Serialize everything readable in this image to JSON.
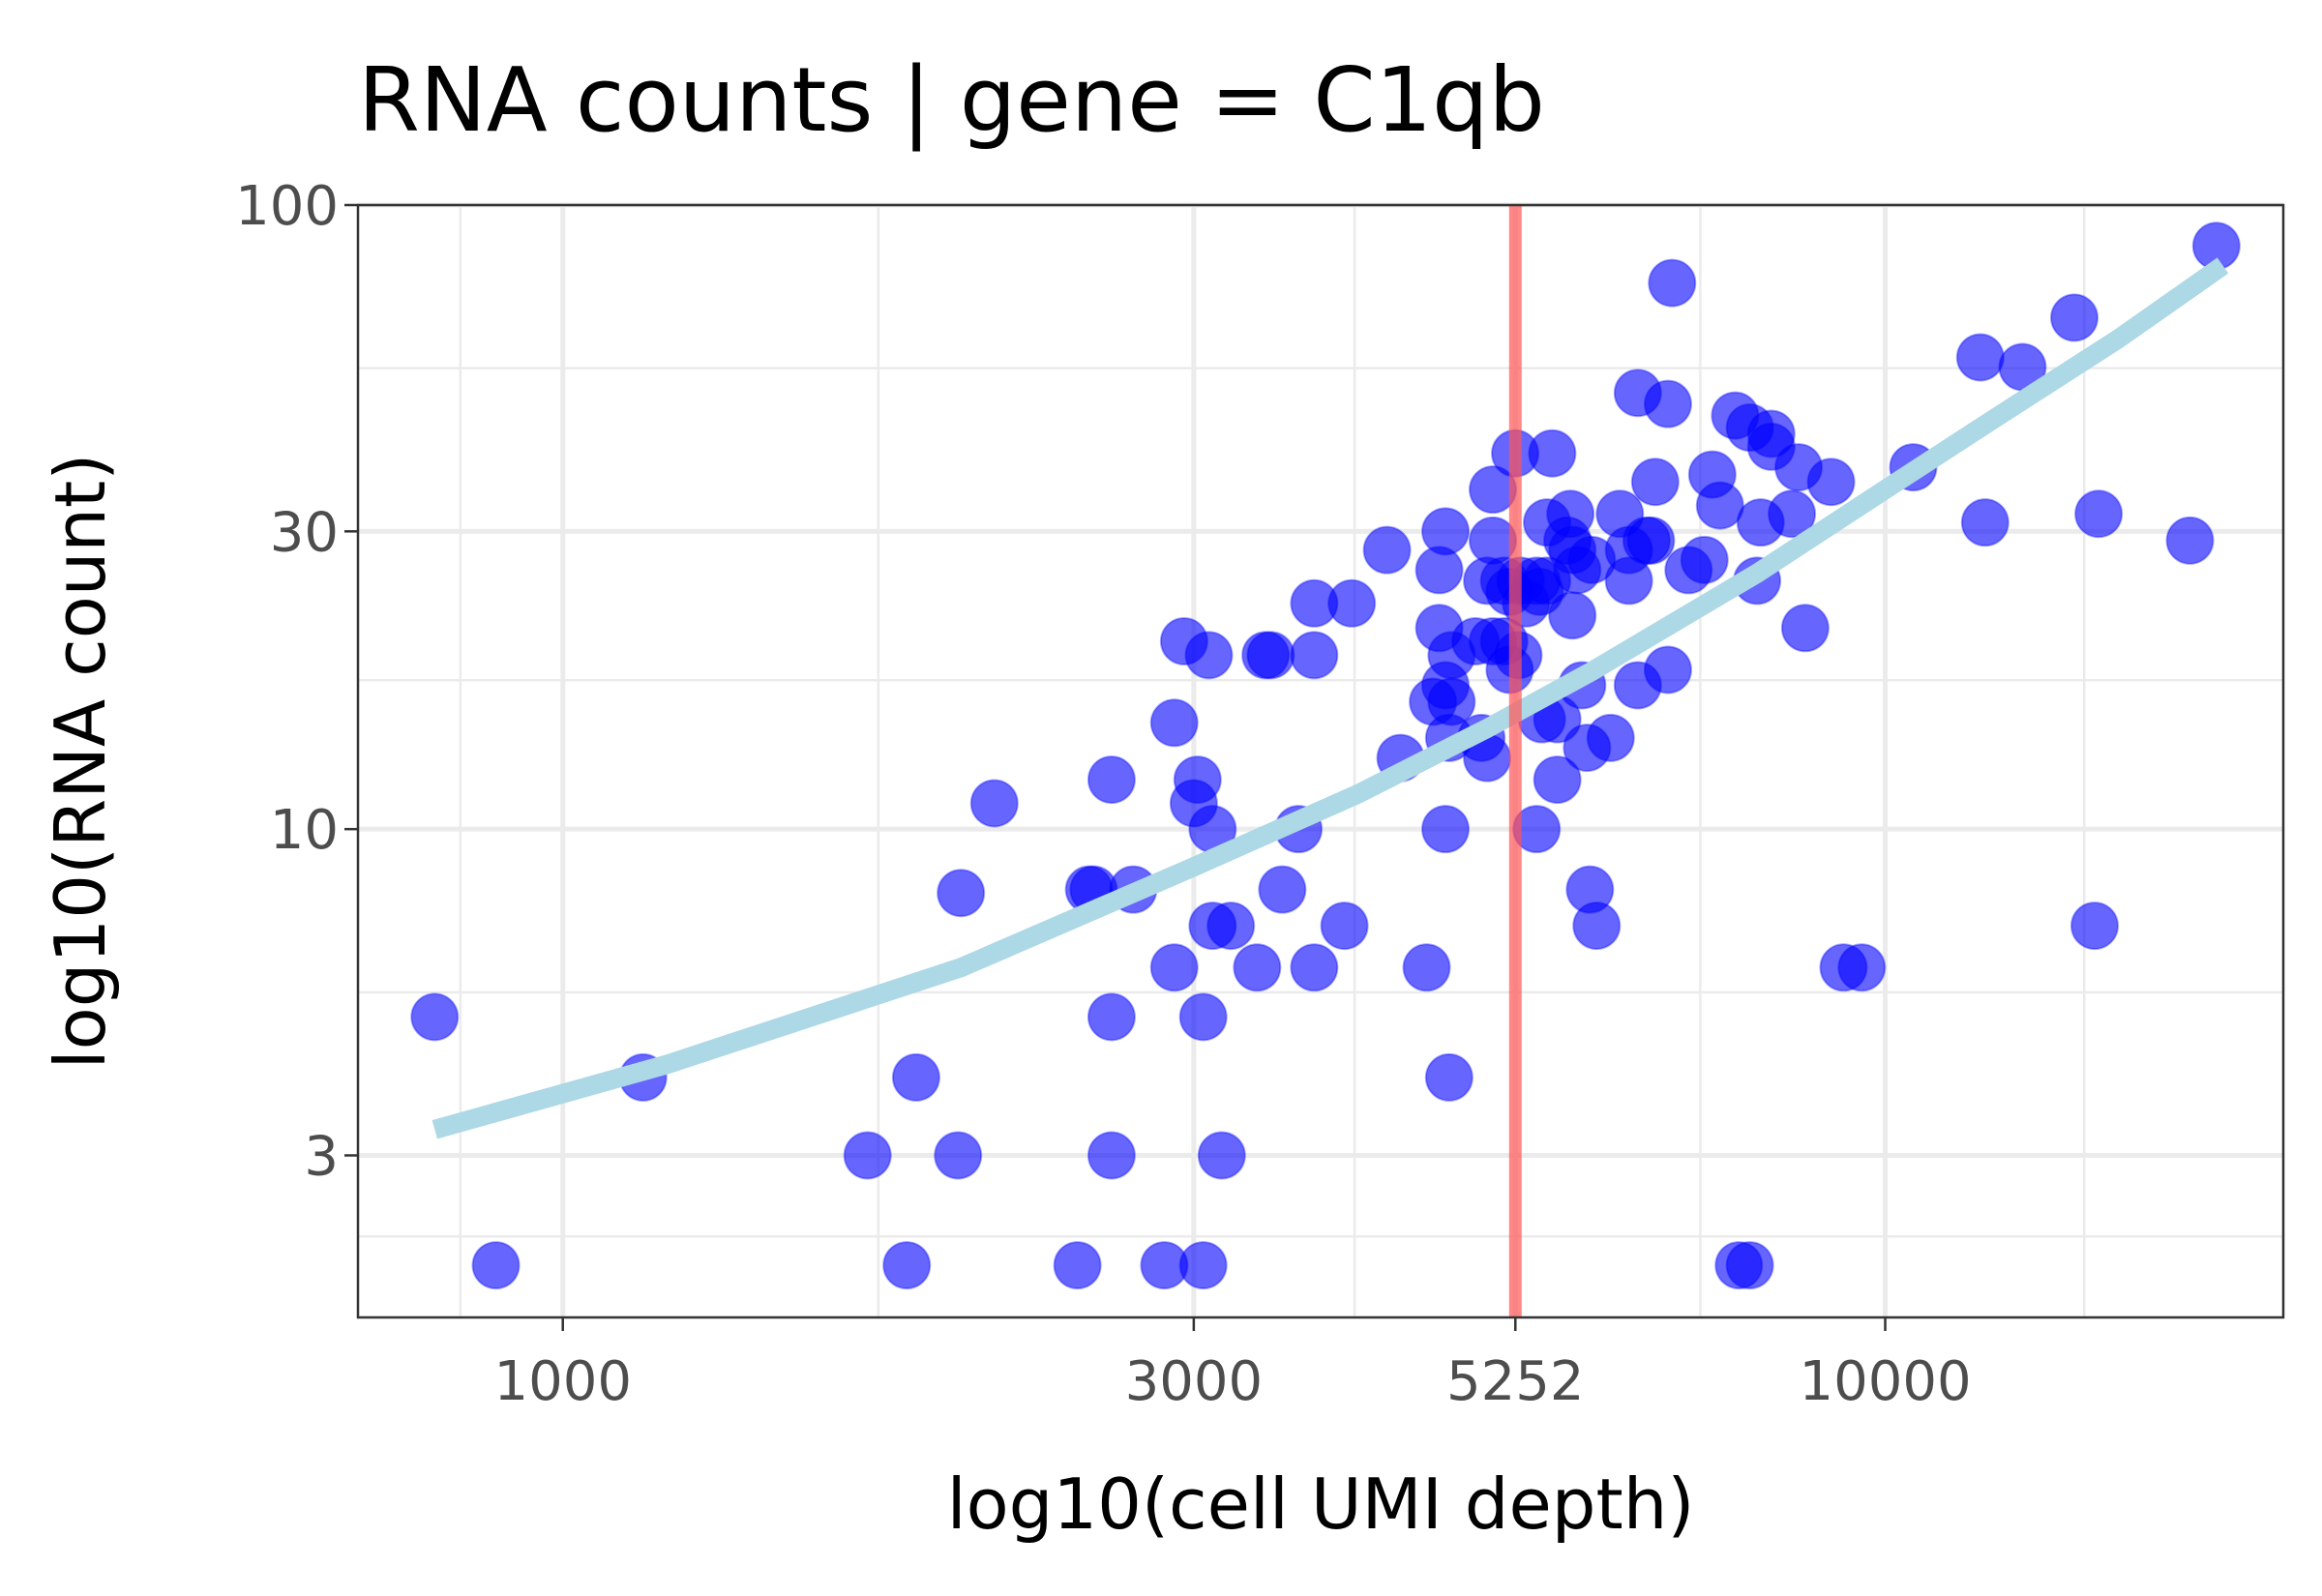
{
  "chart_data": {
    "type": "scatter",
    "title": "RNA counts | gene = C1qb",
    "xlabel": "log10(cell UMI depth)",
    "ylabel": "log10(RNA count)",
    "x_scale": "log10",
    "y_scale": "log10",
    "xlim": [
      700,
      20000
    ],
    "ylim": [
      1.65,
      100
    ],
    "x_ticks": [
      1000,
      3000,
      5252,
      10000
    ],
    "x_tick_labels": [
      "1000",
      "3000",
      "5252",
      "10000"
    ],
    "y_ticks": [
      3,
      10,
      30,
      100
    ],
    "y_tick_labels": [
      "3",
      "10",
      "30",
      "100"
    ],
    "grid": true,
    "vline": {
      "x": 5252,
      "color": "#ff5555"
    },
    "fit_curve": {
      "color": "#add8e6",
      "x": [
        800,
        1200,
        2000,
        3000,
        4000,
        5000,
        6000,
        8000,
        10000,
        12000,
        15000,
        18000
      ],
      "y": [
        3.3,
        4.2,
        6.0,
        8.7,
        11.4,
        14.5,
        17.9,
        25.7,
        35.0,
        45.0,
        61.0,
        80.0
      ]
    },
    "series": [
      {
        "color": "#0000ff",
        "points": [
          [
            800,
            5.0
          ],
          [
            890,
            2.0
          ],
          [
            1150,
            4.0
          ],
          [
            1700,
            3.0
          ],
          [
            1820,
            2.0
          ],
          [
            1850,
            4.0
          ],
          [
            1990,
            3.0
          ],
          [
            2000,
            7.9
          ],
          [
            2120,
            11.0
          ],
          [
            2450,
            2.0
          ],
          [
            2500,
            8.0
          ],
          [
            2520,
            8.0
          ],
          [
            2600,
            5.0
          ],
          [
            2600,
            3.0
          ],
          [
            2600,
            12.0
          ],
          [
            2700,
            8.0
          ],
          [
            2850,
            2.0
          ],
          [
            2900,
            14.8
          ],
          [
            2900,
            6.0
          ],
          [
            2950,
            20.0
          ],
          [
            3000,
            11.0
          ],
          [
            3020,
            12.0
          ],
          [
            3050,
            2.0
          ],
          [
            3050,
            5.0
          ],
          [
            3080,
            19.0
          ],
          [
            3100,
            10.0
          ],
          [
            3100,
            7.0
          ],
          [
            3150,
            3.0
          ],
          [
            3200,
            7.0
          ],
          [
            3350,
            6.0
          ],
          [
            3400,
            19.0
          ],
          [
            3430,
            19.0
          ],
          [
            3500,
            8.0
          ],
          [
            3600,
            10.0
          ],
          [
            3700,
            23.0
          ],
          [
            3700,
            6.0
          ],
          [
            3700,
            19.0
          ],
          [
            3900,
            7.0
          ],
          [
            3950,
            23.0
          ],
          [
            4200,
            28.0
          ],
          [
            4300,
            13.0
          ],
          [
            4500,
            6.0
          ],
          [
            4550,
            16.0
          ],
          [
            4600,
            26.0
          ],
          [
            4600,
            21.0
          ],
          [
            4650,
            30.0
          ],
          [
            4650,
            17.0
          ],
          [
            4650,
            10.0
          ],
          [
            4680,
            4.0
          ],
          [
            4680,
            14.0
          ],
          [
            4700,
            19.0
          ],
          [
            4700,
            16.0
          ],
          [
            4900,
            20.0
          ],
          [
            4950,
            14.0
          ],
          [
            5000,
            25.0
          ],
          [
            5000,
            13.0
          ],
          [
            5050,
            35.0
          ],
          [
            5050,
            29.0
          ],
          [
            5050,
            20.0
          ],
          [
            5150,
            25.0
          ],
          [
            5150,
            20.0
          ],
          [
            5200,
            18.0
          ],
          [
            5200,
            24.0
          ],
          [
            5250,
            40.0
          ],
          [
            5280,
            19.0
          ],
          [
            5300,
            25.0
          ],
          [
            5350,
            23.0
          ],
          [
            5450,
            10.0
          ],
          [
            5450,
            25.0
          ],
          [
            5480,
            24.0
          ],
          [
            5500,
            15.0
          ],
          [
            5550,
            31.0
          ],
          [
            5550,
            25.0
          ],
          [
            5600,
            40.0
          ],
          [
            5650,
            12.0
          ],
          [
            5650,
            15.0
          ],
          [
            5750,
            29.0
          ],
          [
            5780,
            32.0
          ],
          [
            5800,
            28.0
          ],
          [
            5800,
            22.0
          ],
          [
            5850,
            26.0
          ],
          [
            5900,
            17.0
          ],
          [
            5950,
            13.5
          ],
          [
            5980,
            8.0
          ],
          [
            6000,
            27.0
          ],
          [
            6050,
            7.0
          ],
          [
            6200,
            14.0
          ],
          [
            6300,
            32.0
          ],
          [
            6400,
            25.0
          ],
          [
            6400,
            28.0
          ],
          [
            6500,
            50.0
          ],
          [
            6500,
            17.0
          ],
          [
            6600,
            29.0
          ],
          [
            6650,
            29.0
          ],
          [
            6700,
            36.0
          ],
          [
            6850,
            48.0
          ],
          [
            6850,
            18.0
          ],
          [
            6900,
            75.0
          ],
          [
            7100,
            26.0
          ],
          [
            7300,
            27.0
          ],
          [
            7400,
            37.0
          ],
          [
            7500,
            33.0
          ],
          [
            7700,
            46.0
          ],
          [
            7750,
            2.0
          ],
          [
            7900,
            2.0
          ],
          [
            7900,
            44.0
          ],
          [
            8000,
            25.0
          ],
          [
            8050,
            31.0
          ],
          [
            8200,
            43.0
          ],
          [
            8200,
            41.0
          ],
          [
            8500,
            32.0
          ],
          [
            8600,
            38.0
          ],
          [
            8700,
            21.0
          ],
          [
            9100,
            36.0
          ],
          [
            9300,
            6.0
          ],
          [
            9600,
            6.0
          ],
          [
            10500,
            38.0
          ],
          [
            11800,
            57.0
          ],
          [
            11900,
            31.0
          ],
          [
            12700,
            55.0
          ],
          [
            13900,
            66.0
          ],
          [
            14400,
            7.0
          ],
          [
            14500,
            32.0
          ],
          [
            17000,
            29.0
          ],
          [
            17800,
            86.0
          ]
        ]
      }
    ]
  }
}
